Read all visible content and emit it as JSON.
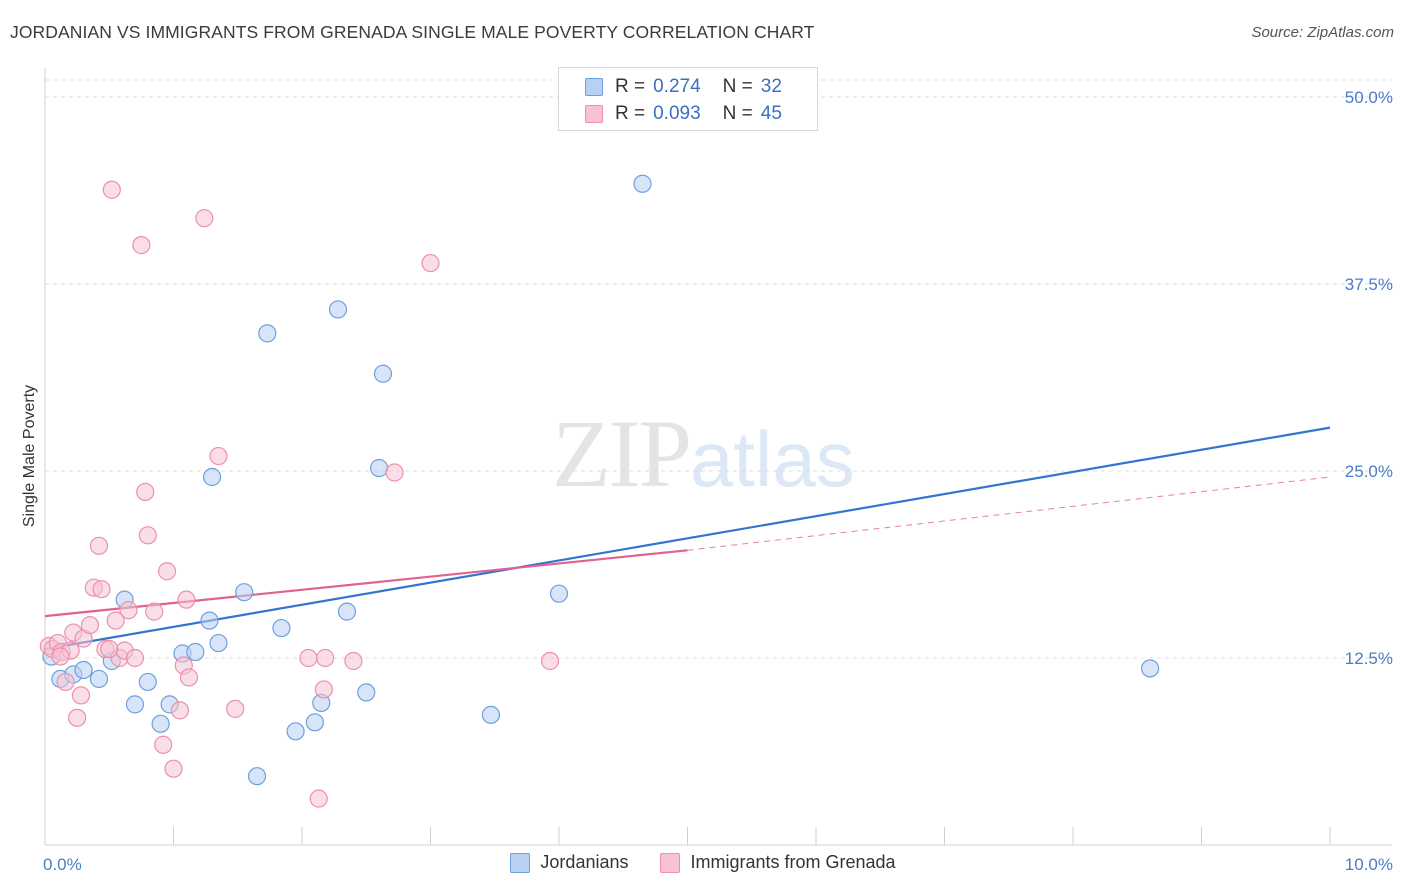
{
  "chart_data": {
    "type": "scatter",
    "title": "JORDANIAN VS IMMIGRANTS FROM GRENADA SINGLE MALE POVERTY CORRELATION CHART",
    "source": "Source: ZipAtlas.com",
    "xlabel": "",
    "ylabel": "Single Male Poverty",
    "xlim": [
      0,
      10
    ],
    "ylim": [
      0,
      50
    ],
    "x_tick_labels": [
      "0.0%",
      "10.0%"
    ],
    "y_ticks": [
      12.5,
      25.0,
      37.5,
      50.0
    ],
    "y_tick_labels": [
      "12.5%",
      "25.0%",
      "37.5%",
      "50.0%"
    ],
    "grid": true,
    "watermark": {
      "zip": "ZIP",
      "atlas": "atlas"
    },
    "legend": {
      "rows": [
        {
          "r_label": "R =",
          "r_value": "0.274",
          "n_label": "N =",
          "n_value": "32"
        },
        {
          "r_label": "R =",
          "r_value": "0.093",
          "n_label": "N =",
          "n_value": "45"
        }
      ]
    },
    "series": [
      {
        "name": "Jordanians",
        "color": "#6f9fe0",
        "fill": "#b8d0f2",
        "line_color": "#3474cf",
        "trend": {
          "x0": 0.0,
          "y0": 13.1,
          "x1": 10.0,
          "y1": 27.9
        },
        "points": [
          [
            0.05,
            12.6
          ],
          [
            0.12,
            11.1
          ],
          [
            0.22,
            11.4
          ],
          [
            0.3,
            11.7
          ],
          [
            0.42,
            11.1
          ],
          [
            0.52,
            12.3
          ],
          [
            0.62,
            16.4
          ],
          [
            0.7,
            9.4
          ],
          [
            0.8,
            10.9
          ],
          [
            0.9,
            8.1
          ],
          [
            0.97,
            9.4
          ],
          [
            1.07,
            12.8
          ],
          [
            1.17,
            12.9
          ],
          [
            1.28,
            15.0
          ],
          [
            1.35,
            13.5
          ],
          [
            1.3,
            24.6
          ],
          [
            1.55,
            16.9
          ],
          [
            1.73,
            34.2
          ],
          [
            1.65,
            4.6
          ],
          [
            1.84,
            14.5
          ],
          [
            1.95,
            7.6
          ],
          [
            2.1,
            8.2
          ],
          [
            2.15,
            9.5
          ],
          [
            2.28,
            35.8
          ],
          [
            2.35,
            15.6
          ],
          [
            2.5,
            10.2
          ],
          [
            2.6,
            25.2
          ],
          [
            2.63,
            31.5
          ],
          [
            3.47,
            8.7
          ],
          [
            4.0,
            16.8
          ],
          [
            4.65,
            44.2
          ],
          [
            8.6,
            11.8
          ]
        ]
      },
      {
        "name": "Immigrants from Grenada",
        "color": "#ee8fab",
        "fill": "#f6c3d3",
        "line_color": "#e0628f",
        "trend": {
          "x0": 0.0,
          "y0": 15.3,
          "x1": 5.0,
          "y1": 19.7
        },
        "trend_dashed": {
          "x0": 5.0,
          "y0": 19.7,
          "x1": 10.0,
          "y1": 24.6
        },
        "points": [
          [
            0.03,
            13.3
          ],
          [
            0.06,
            13.1
          ],
          [
            0.1,
            13.5
          ],
          [
            0.13,
            12.9
          ],
          [
            0.16,
            10.9
          ],
          [
            0.2,
            13.0
          ],
          [
            0.22,
            14.2
          ],
          [
            0.25,
            8.5
          ],
          [
            0.28,
            10.0
          ],
          [
            0.3,
            13.8
          ],
          [
            0.35,
            14.7
          ],
          [
            0.38,
            17.2
          ],
          [
            0.42,
            20.0
          ],
          [
            0.44,
            17.1
          ],
          [
            0.47,
            13.1
          ],
          [
            0.52,
            43.8
          ],
          [
            0.55,
            15.0
          ],
          [
            0.58,
            12.5
          ],
          [
            0.62,
            13.0
          ],
          [
            0.65,
            15.7
          ],
          [
            0.7,
            12.5
          ],
          [
            0.75,
            40.1
          ],
          [
            0.78,
            23.6
          ],
          [
            0.8,
            20.7
          ],
          [
            0.85,
            15.6
          ],
          [
            0.92,
            6.7
          ],
          [
            0.95,
            18.3
          ],
          [
            1.0,
            5.1
          ],
          [
            1.05,
            9.0
          ],
          [
            1.08,
            12.0
          ],
          [
            1.1,
            16.4
          ],
          [
            1.12,
            11.2
          ],
          [
            1.24,
            41.9
          ],
          [
            1.35,
            26.0
          ],
          [
            1.48,
            9.1
          ],
          [
            2.05,
            12.5
          ],
          [
            2.13,
            3.1
          ],
          [
            2.17,
            10.4
          ],
          [
            2.18,
            12.5
          ],
          [
            2.4,
            12.3
          ],
          [
            2.72,
            24.9
          ],
          [
            3.0,
            38.9
          ],
          [
            3.93,
            12.3
          ],
          [
            0.12,
            12.6
          ],
          [
            0.5,
            13.1
          ]
        ]
      }
    ]
  }
}
